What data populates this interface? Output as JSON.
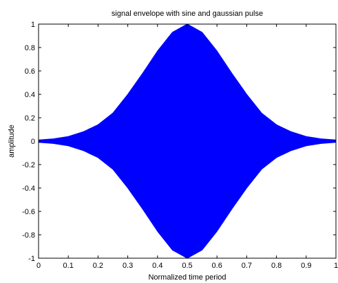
{
  "chart_data": {
    "type": "area",
    "title": "signal envelope with sine and gaussian pulse",
    "xlabel": "Normalized time period",
    "ylabel": "amplitude",
    "xlim": [
      0,
      1
    ],
    "ylim": [
      -1,
      1
    ],
    "x_ticks": [
      "0",
      "0.1",
      "0.2",
      "0.3",
      "0.4",
      "0.5",
      "0.6",
      "0.7",
      "0.8",
      "0.9",
      "1"
    ],
    "y_ticks": [
      "-1",
      "-0.8",
      "-0.6",
      "-0.4",
      "-0.2",
      "0",
      "0.2",
      "0.4",
      "0.6",
      "0.8",
      "1"
    ],
    "grid": false,
    "series": [
      {
        "color": "#0000ff",
        "x": [
          0,
          0.05,
          0.1,
          0.15,
          0.2,
          0.25,
          0.3,
          0.35,
          0.4,
          0.45,
          0.5,
          0.55,
          0.6,
          0.65,
          0.7,
          0.75,
          0.8,
          0.85,
          0.9,
          0.95,
          1
        ],
        "upper": [
          0.01,
          0.02,
          0.04,
          0.08,
          0.14,
          0.24,
          0.4,
          0.58,
          0.77,
          0.93,
          1.0,
          0.93,
          0.77,
          0.58,
          0.4,
          0.24,
          0.14,
          0.08,
          0.04,
          0.02,
          0.01
        ],
        "lower": [
          -0.01,
          -0.02,
          -0.04,
          -0.08,
          -0.14,
          -0.24,
          -0.4,
          -0.58,
          -0.77,
          -0.93,
          -1.0,
          -0.93,
          -0.77,
          -0.58,
          -0.4,
          -0.24,
          -0.14,
          -0.08,
          -0.04,
          -0.02,
          -0.01
        ]
      }
    ]
  }
}
